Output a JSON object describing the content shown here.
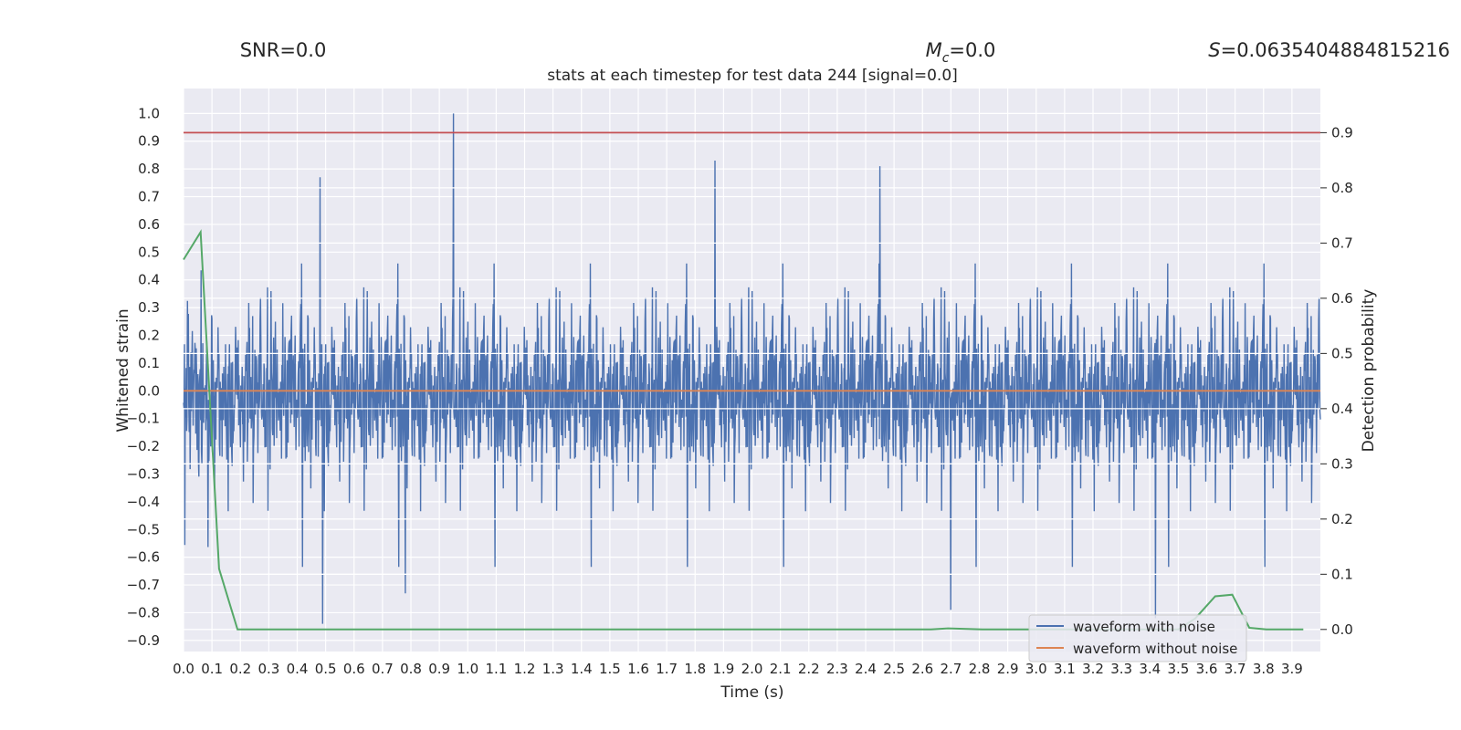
{
  "header": {
    "snr": "SNR=0.0",
    "mc_symbol": "M",
    "mc_subscript": "c",
    "mc_value": "=0.0",
    "s_symbol": "S",
    "s_value": "=0.0635404884815216"
  },
  "chart_data": {
    "type": "line",
    "title": "stats at each timestep for test data 244 [signal=0.0]",
    "xlabel": "Time (s)",
    "ylabel": "Whitened strain",
    "y2label": "Detection probability",
    "xlim": [
      0.0,
      4.0
    ],
    "ylim": [
      -0.94,
      1.09
    ],
    "y2lim": [
      -0.04,
      0.98
    ],
    "xticks": [
      "0.0",
      "0.1",
      "0.2",
      "0.3",
      "0.4",
      "0.5",
      "0.6",
      "0.7",
      "0.8",
      "0.9",
      "1.0",
      "1.1",
      "1.2",
      "1.3",
      "1.4",
      "1.5",
      "1.6",
      "1.7",
      "1.8",
      "1.9",
      "2.0",
      "2.1",
      "2.2",
      "2.3",
      "2.4",
      "2.5",
      "2.6",
      "2.7",
      "2.8",
      "2.9",
      "3.0",
      "3.1",
      "3.2",
      "3.3",
      "3.4",
      "3.5",
      "3.6",
      "3.7",
      "3.8",
      "3.9"
    ],
    "yticks": [
      "1.0",
      "0.9",
      "0.8",
      "0.7",
      "0.6",
      "0.5",
      "0.4",
      "0.3",
      "0.2",
      "0.1",
      "0.0",
      "−0.1",
      "−0.2",
      "−0.3",
      "−0.4",
      "−0.5",
      "−0.6",
      "−0.7",
      "−0.8",
      "−0.9"
    ],
    "y2ticks": [
      "0.9",
      "0.8",
      "0.7",
      "0.6",
      "0.5",
      "0.4",
      "0.3",
      "0.2",
      "0.1",
      "0.0"
    ],
    "threshold": 0.9,
    "series": [
      {
        "name": "waveform with noise",
        "color": "#4c72b0",
        "axis": "left",
        "description": "Dense noise trace (approx. 4096 samples over 0–4 s)",
        "envelope_max": 1.0,
        "envelope_min": -0.84,
        "peaks": [
          {
            "x": 0.95,
            "y": 1.0
          },
          {
            "x": 0.48,
            "y": 0.77
          },
          {
            "x": 1.87,
            "y": 0.83
          },
          {
            "x": 2.45,
            "y": 0.81
          },
          {
            "x": 0.49,
            "y": -0.84
          },
          {
            "x": 3.42,
            "y": -0.82
          },
          {
            "x": 2.7,
            "y": -0.79
          },
          {
            "x": 0.78,
            "y": -0.73
          }
        ]
      },
      {
        "name": "waveform without noise",
        "color": "#dd8452",
        "axis": "left",
        "x": [
          0.0,
          4.0
        ],
        "y": [
          0.0,
          0.0
        ]
      },
      {
        "name": "Detection probability",
        "color": "#55a868",
        "axis": "right",
        "show_in_legend": false,
        "x": [
          0.0,
          0.06,
          0.125,
          0.19,
          0.25,
          0.5,
          1.0,
          2.0,
          2.5,
          2.63,
          2.69,
          2.81,
          3.0,
          3.5,
          3.56,
          3.63,
          3.69,
          3.75,
          3.81,
          3.94
        ],
        "y": [
          0.67,
          0.72,
          0.11,
          0.0,
          0.0,
          0.0,
          0.0,
          0.0,
          0.0,
          0.0,
          0.002,
          0.0,
          0.0,
          0.0,
          0.02,
          0.06,
          0.063,
          0.003,
          0.0,
          0.0
        ]
      }
    ],
    "legend": {
      "position": "bottom-right",
      "entries": [
        {
          "label": "waveform with noise",
          "color": "#4c72b0"
        },
        {
          "label": "waveform without noise",
          "color": "#dd8452"
        }
      ]
    },
    "style": {
      "plot_background": "#eaeaf2",
      "grid_color": "#ffffff",
      "threshold_color": "#c44e52"
    }
  }
}
